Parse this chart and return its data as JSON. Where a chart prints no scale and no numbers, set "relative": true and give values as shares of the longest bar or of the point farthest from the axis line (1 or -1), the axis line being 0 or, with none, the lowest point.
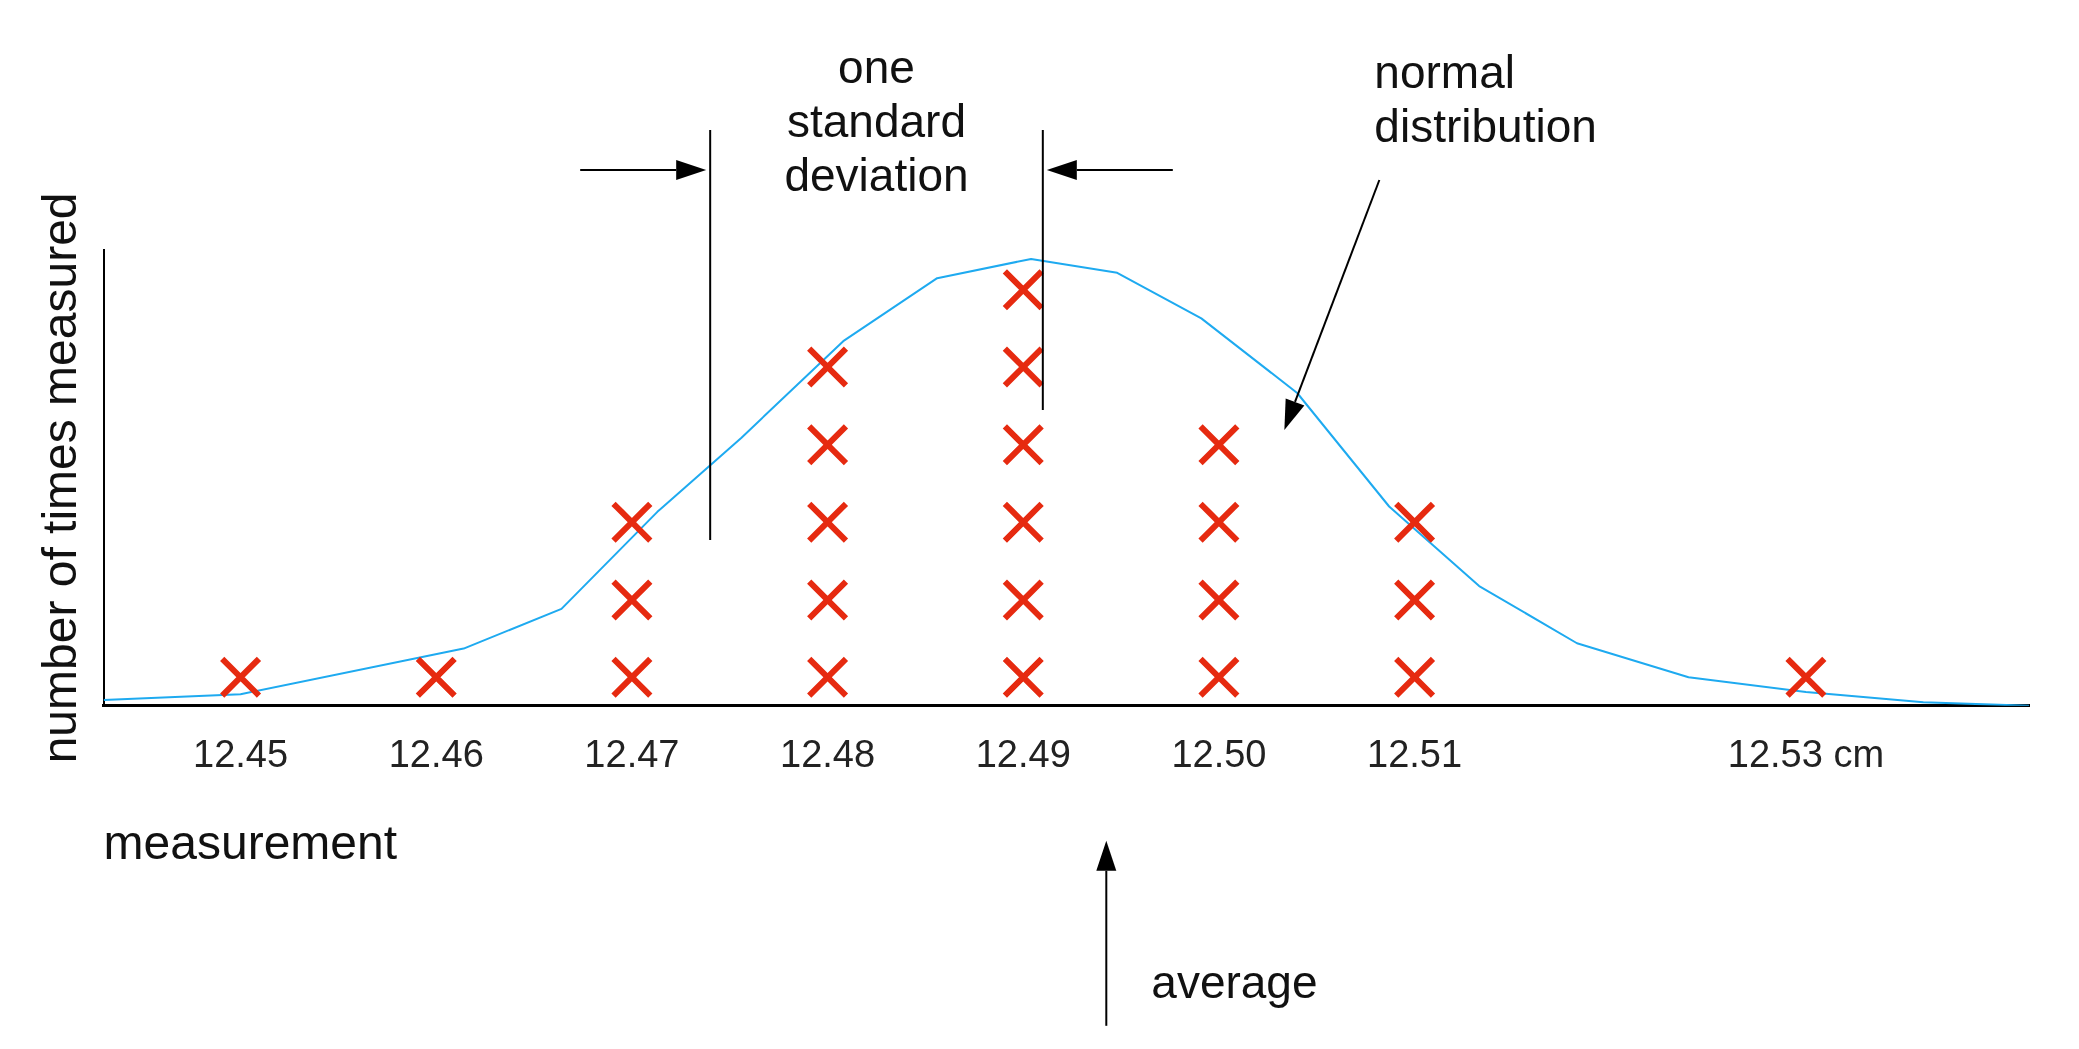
{
  "chart_data": {
    "type": "scatter",
    "xlabel": "measurement",
    "ylabel": "number of times measured",
    "relative": true,
    "xlim": [
      12.443,
      12.5414
    ],
    "xticks": [
      12.45,
      12.46,
      12.47,
      12.48,
      12.49,
      {
        "value": 12.5,
        "label": "12.50"
      },
      12.51,
      {
        "value": 12.53,
        "label": "12.53 cm"
      }
    ],
    "series": [
      {
        "color": "#e62a10",
        "marker": "cross",
        "x": [
          12.45,
          12.46,
          12.47,
          12.47,
          12.47,
          12.48,
          12.48,
          12.48,
          12.48,
          12.48,
          12.49,
          12.49,
          12.49,
          12.49,
          12.49,
          12.49,
          12.5,
          12.5,
          12.5,
          12.5,
          12.51,
          12.51,
          12.51,
          12.53
        ],
        "values": [
          0.064,
          0.064,
          0.064,
          0.237,
          0.411,
          0.064,
          0.237,
          0.411,
          0.584,
          0.758,
          0.064,
          0.237,
          0.411,
          0.584,
          0.758,
          0.931,
          0.064,
          0.237,
          0.411,
          0.584,
          0.064,
          0.237,
          0.411,
          0.064
        ]
      },
      {
        "type": "line",
        "color": "#1eaaf0",
        "marker": "none",
        "line_style": "solid",
        "x": [
          12.443,
          12.45,
          12.4614,
          12.4664,
          12.4713,
          12.4756,
          12.4808,
          12.4856,
          12.4904,
          12.4948,
          12.4991,
          12.504,
          12.5087,
          12.5133,
          12.5183,
          12.524,
          12.53,
          12.536,
          12.5414
        ],
        "values": [
          0.013,
          0.026,
          0.128,
          0.217,
          0.434,
          0.6,
          0.816,
          0.957,
          1,
          0.969,
          0.867,
          0.7,
          0.446,
          0.268,
          0.14,
          0.064,
          0.031,
          0.008,
          0
        ]
      }
    ],
    "ref_lines": [
      {
        "axis": "x",
        "value": 12.474,
        "color": "#000000"
      },
      {
        "axis": "x",
        "value": 12.491,
        "color": "#000000"
      }
    ],
    "annotations": [
      "one standard deviation",
      "normal distribution",
      "average"
    ],
    "grid": false,
    "legend": false
  }
}
